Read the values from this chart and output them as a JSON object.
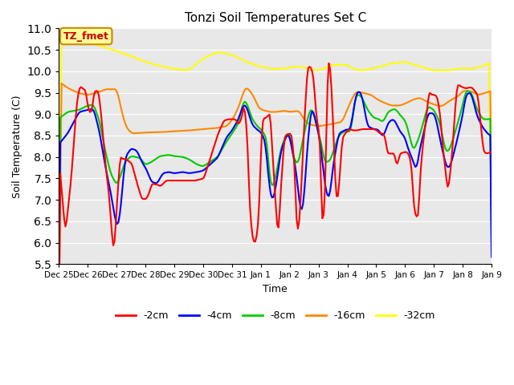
{
  "title": "Tonzi Soil Temperatures Set C",
  "xlabel": "Time",
  "ylabel": "Soil Temperature (C)",
  "ylim": [
    5.5,
    11.0
  ],
  "yticks": [
    5.5,
    6.0,
    6.5,
    7.0,
    7.5,
    8.0,
    8.5,
    9.0,
    9.5,
    10.0,
    10.5,
    11.0
  ],
  "colors": {
    "-2cm": "#ff0000",
    "-4cm": "#0000ff",
    "-8cm": "#00cc00",
    "-16cm": "#ff8800",
    "-32cm": "#ffff00"
  },
  "bg_color": "#e8e8e8",
  "annotation_label": "TZ_fmet",
  "annotation_color": "#cc0000",
  "annotation_bg": "#ffff99",
  "annotation_border": "#cc8800"
}
